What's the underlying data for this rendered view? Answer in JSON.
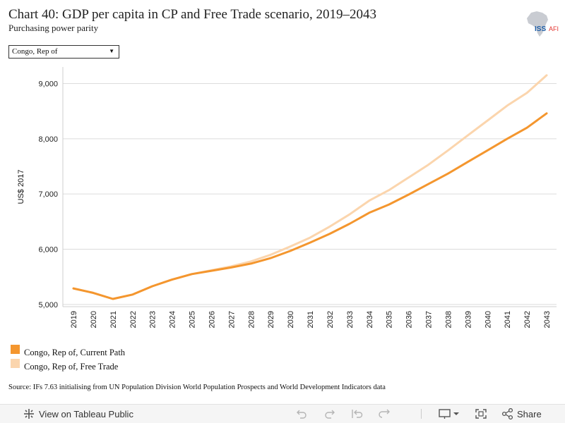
{
  "header": {
    "title": "Chart 40: GDP per capita in CP and Free Trade scenario, 2019–2043",
    "subtitle": "Purchasing power parity",
    "logo_text": "ISS",
    "logo_text_accent": "AFI"
  },
  "filter": {
    "selected": "Congo, Rep of"
  },
  "chart_data": {
    "type": "line",
    "title": "Chart 40: GDP per capita in CP and Free Trade scenario, 2019–2043",
    "subtitle": "Purchasing power parity",
    "xlabel": "",
    "ylabel": "US$ 2017",
    "ylim": [
      4960,
      9300
    ],
    "yticks": [
      5000,
      6000,
      7000,
      8000,
      9000
    ],
    "ytick_labels": [
      "5,000",
      "6,000",
      "7,000",
      "8,000",
      "9,000"
    ],
    "x": [
      "2019",
      "2020",
      "2021",
      "2022",
      "2023",
      "2024",
      "2025",
      "2026",
      "2027",
      "2028",
      "2029",
      "2030",
      "2031",
      "2032",
      "2033",
      "2034",
      "2035",
      "2036",
      "2037",
      "2038",
      "2039",
      "2040",
      "2041",
      "2042",
      "2043"
    ],
    "grid": true,
    "legend_position": "bottom-left",
    "series": [
      {
        "name": "Congo, Rep of, Current Path",
        "color": "#f4962e",
        "values": [
          5290,
          5210,
          5100,
          5180,
          5330,
          5450,
          5550,
          5610,
          5670,
          5740,
          5840,
          5970,
          6120,
          6280,
          6460,
          6660,
          6810,
          6990,
          7180,
          7370,
          7580,
          7790,
          8000,
          8200,
          8460
        ]
      },
      {
        "name": "Congo, Rep of, Free Trade",
        "color": "#fbd5ad",
        "values": [
          5290,
          5210,
          5100,
          5180,
          5330,
          5450,
          5550,
          5620,
          5690,
          5780,
          5900,
          6050,
          6210,
          6410,
          6630,
          6880,
          7070,
          7300,
          7530,
          7790,
          8060,
          8330,
          8600,
          8830,
          9150
        ]
      }
    ]
  },
  "source": "Source: IFs 7.63 initialising from UN Population Division World Population Prospects and World Development Indicators data",
  "toolbar": {
    "view_label": "View on Tableau Public",
    "share_label": "Share"
  },
  "icons": {
    "tableau": "tableau-logo-icon",
    "undo": "undo-icon",
    "redo": "redo-icon",
    "revert": "revert-icon",
    "refresh": "refresh-icon",
    "download": "download-icon",
    "fullscreen": "fullscreen-icon",
    "share": "share-icon"
  }
}
